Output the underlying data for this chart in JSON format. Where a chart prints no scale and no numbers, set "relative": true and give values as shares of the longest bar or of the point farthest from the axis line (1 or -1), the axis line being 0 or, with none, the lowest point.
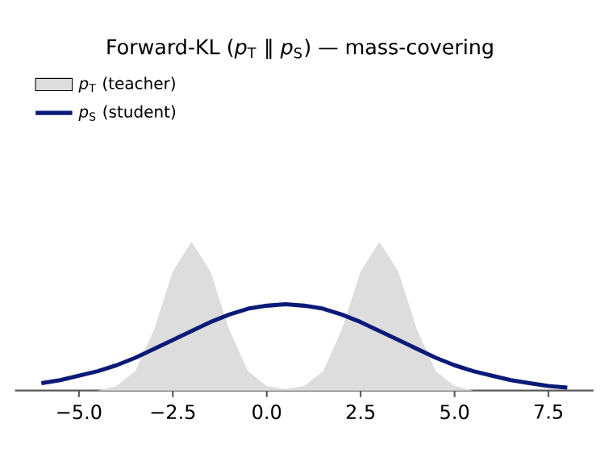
{
  "chart_data": {
    "type": "area",
    "title": "Forward-KL (*p*$_{T}$ ‖ *p*$_{S}$) — mass-covering",
    "relative": true,
    "legend": "top left",
    "x": [
      -6,
      -5.5,
      -5,
      -4.5,
      -4,
      -3.5,
      -3,
      -2.5,
      -2,
      -1.5,
      -1,
      -0.5,
      0,
      0.5,
      1,
      1.5,
      2,
      2.5,
      3,
      3.5,
      4,
      4.5,
      5,
      5.5,
      6,
      6.5,
      7,
      7.5,
      8
    ],
    "xlim": [
      -6.7,
      8.7
    ],
    "xticks": [
      {
        "value": -5,
        "label": "−5.0"
      },
      {
        "value": -2.5,
        "label": "−2.5"
      },
      {
        "value": 0,
        "label": "0.0"
      },
      {
        "value": 2.5,
        "label": "2.5"
      },
      {
        "value": 5,
        "label": "5.0"
      },
      {
        "value": 7.5,
        "label": "7.5"
      }
    ],
    "series": [
      {
        "name": "*p*$_{T}$ (teacher)",
        "color": "#dddddd",
        "values": [
          0,
          0,
          0,
          0,
          0.03,
          0.13,
          0.41,
          0.8,
          1,
          0.8,
          0.41,
          0.13,
          0.03,
          0.01,
          0.03,
          0.13,
          0.41,
          0.8,
          1,
          0.8,
          0.41,
          0.13,
          0.03,
          0,
          0,
          0,
          0,
          0,
          0
        ]
      },
      {
        "name": "*p*$_{S}$ (student)",
        "type": "line",
        "color": "#0b1a78",
        "values": [
          0.05,
          0.07,
          0.1,
          0.13,
          0.17,
          0.22,
          0.28,
          0.34,
          0.4,
          0.46,
          0.51,
          0.55,
          0.57,
          0.58,
          0.57,
          0.55,
          0.51,
          0.46,
          0.4,
          0.34,
          0.28,
          0.22,
          0.17,
          0.13,
          0.1,
          0.07,
          0.05,
          0.03,
          0.02
        ]
      }
    ]
  }
}
